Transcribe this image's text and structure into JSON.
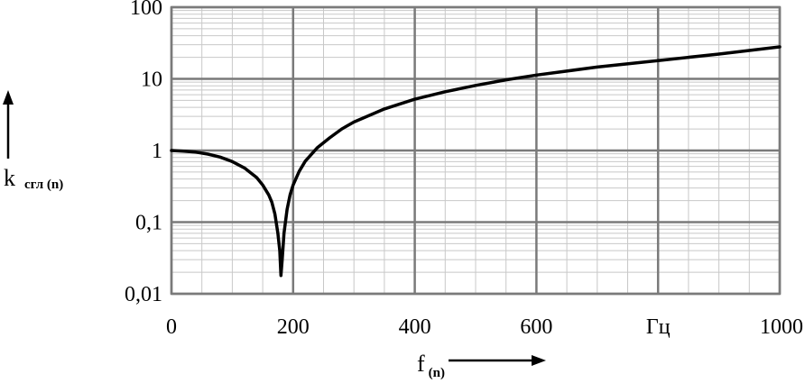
{
  "chart_data": {
    "type": "line",
    "title": "",
    "xlabel": "f",
    "xlabel_sub": "(n)",
    "ylabel": "k",
    "ylabel_sub": "сгл (n)",
    "x_scale": "linear",
    "y_scale": "log",
    "xlim": [
      0,
      1000
    ],
    "ylim": [
      0.01,
      100
    ],
    "grid": true,
    "x_ticks": [
      {
        "value": 0,
        "label": "0"
      },
      {
        "value": 200,
        "label": "200"
      },
      {
        "value": 400,
        "label": "400"
      },
      {
        "value": 600,
        "label": "600"
      },
      {
        "value": 800,
        "label": "Гц"
      },
      {
        "value": 1000,
        "label": "1000"
      }
    ],
    "y_ticks": [
      {
        "value": 0.01,
        "label": "0,01"
      },
      {
        "value": 0.1,
        "label": "0,1"
      },
      {
        "value": 1,
        "label": "1"
      },
      {
        "value": 10,
        "label": "10"
      },
      {
        "value": 100,
        "label": "100"
      }
    ],
    "series": [
      {
        "color": "#000000",
        "x": [
          0,
          20,
          40,
          60,
          80,
          100,
          120,
          140,
          150,
          160,
          165,
          170,
          175,
          178,
          180,
          182,
          185,
          190,
          195,
          200,
          210,
          220,
          240,
          260,
          280,
          300,
          350,
          400,
          450,
          500,
          550,
          600,
          700,
          800,
          900,
          1000
        ],
        "y": [
          1.0,
          0.98,
          0.95,
          0.89,
          0.81,
          0.7,
          0.57,
          0.42,
          0.33,
          0.24,
          0.19,
          0.13,
          0.07,
          0.04,
          0.018,
          0.03,
          0.07,
          0.15,
          0.24,
          0.33,
          0.51,
          0.71,
          1.1,
          1.5,
          2.0,
          2.5,
          3.8,
          5.2,
          6.6,
          8.1,
          9.7,
          11.3,
          14.6,
          18.0,
          22.2,
          28.0
        ]
      }
    ]
  }
}
